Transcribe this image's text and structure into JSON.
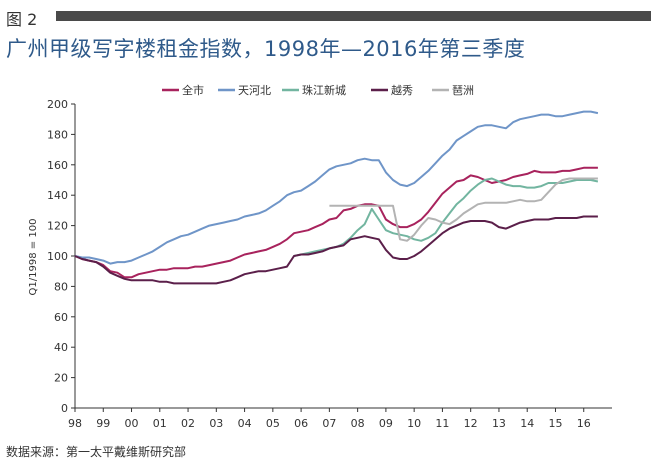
{
  "figure_label": "图 2",
  "title": "广州甲级写字楼租金指数，1998年—2016年第三季度",
  "source": "数据来源：第一太平戴维斯研究部",
  "colors": {
    "title": "#2f5a8a",
    "bar": "#4a4a4a"
  },
  "chart_data": {
    "type": "line",
    "ylabel": "Q1/1998 = 100",
    "xlabel": "",
    "ylim": [
      0,
      200
    ],
    "yticks": [
      0,
      20,
      40,
      60,
      80,
      100,
      120,
      140,
      160,
      180,
      200
    ],
    "xticks": [
      "98",
      "99",
      "00",
      "01",
      "02",
      "03",
      "04",
      "05",
      "06",
      "07",
      "08",
      "09",
      "10",
      "11",
      "12",
      "13",
      "14",
      "15",
      "16"
    ],
    "x_quarters": [
      "1998Q1",
      "1998Q2",
      "1998Q3",
      "1998Q4",
      "1999Q1",
      "1999Q2",
      "1999Q3",
      "1999Q4",
      "2000Q1",
      "2000Q2",
      "2000Q3",
      "2000Q4",
      "2001Q1",
      "2001Q2",
      "2001Q3",
      "2001Q4",
      "2002Q1",
      "2002Q2",
      "2002Q3",
      "2002Q4",
      "2003Q1",
      "2003Q2",
      "2003Q3",
      "2003Q4",
      "2004Q1",
      "2004Q2",
      "2004Q3",
      "2004Q4",
      "2005Q1",
      "2005Q2",
      "2005Q3",
      "2005Q4",
      "2006Q1",
      "2006Q2",
      "2006Q3",
      "2006Q4",
      "2007Q1",
      "2007Q2",
      "2007Q3",
      "2007Q4",
      "2008Q1",
      "2008Q2",
      "2008Q3",
      "2008Q4",
      "2009Q1",
      "2009Q2",
      "2009Q3",
      "2009Q4",
      "2010Q1",
      "2010Q2",
      "2010Q3",
      "2010Q4",
      "2011Q1",
      "2011Q2",
      "2011Q3",
      "2011Q4",
      "2012Q1",
      "2012Q2",
      "2012Q3",
      "2012Q4",
      "2013Q1",
      "2013Q2",
      "2013Q3",
      "2013Q4",
      "2014Q1",
      "2014Q2",
      "2014Q3",
      "2014Q4",
      "2015Q1",
      "2015Q2",
      "2015Q3",
      "2015Q4",
      "2016Q1",
      "2016Q2",
      "2016Q3"
    ],
    "grid": false,
    "legend_position": "top",
    "series": [
      {
        "name": "全市",
        "color": "#a8235d",
        "values": [
          100,
          98,
          97,
          96,
          94,
          90,
          89,
          86,
          86,
          88,
          89,
          90,
          91,
          91,
          92,
          92,
          92,
          93,
          93,
          94,
          95,
          96,
          97,
          99,
          101,
          102,
          103,
          104,
          106,
          108,
          111,
          115,
          116,
          117,
          119,
          121,
          124,
          125,
          130,
          131,
          133,
          134,
          134,
          133,
          124,
          121,
          119,
          119,
          121,
          124,
          129,
          135,
          141,
          145,
          149,
          150,
          153,
          152,
          150,
          148,
          149,
          150,
          152,
          153,
          154,
          156,
          155,
          155,
          155,
          156,
          156,
          157,
          158,
          158,
          158
        ]
      },
      {
        "name": "天河北",
        "color": "#6f95c8",
        "values": [
          100,
          99,
          99,
          98,
          97,
          95,
          96,
          96,
          97,
          99,
          101,
          103,
          106,
          109,
          111,
          113,
          114,
          116,
          118,
          120,
          121,
          122,
          123,
          124,
          126,
          127,
          128,
          130,
          133,
          136,
          140,
          142,
          143,
          146,
          149,
          153,
          157,
          159,
          160,
          161,
          163,
          164,
          163,
          163,
          155,
          150,
          147,
          146,
          148,
          152,
          156,
          161,
          166,
          170,
          176,
          179,
          182,
          185,
          186,
          186,
          185,
          184,
          188,
          190,
          191,
          192,
          193,
          193,
          192,
          192,
          193,
          194,
          195,
          195,
          194
        ]
      },
      {
        "name": "珠江新城",
        "color": "#72b5a0",
        "values": [
          null,
          null,
          null,
          null,
          null,
          null,
          null,
          null,
          null,
          null,
          null,
          null,
          null,
          null,
          null,
          null,
          null,
          null,
          null,
          null,
          null,
          null,
          null,
          null,
          null,
          null,
          null,
          null,
          null,
          null,
          null,
          100,
          101,
          102,
          103,
          104,
          105,
          106,
          108,
          112,
          117,
          121,
          131,
          124,
          117,
          115,
          114,
          113,
          111,
          110,
          112,
          115,
          122,
          128,
          134,
          138,
          143,
          147,
          150,
          151,
          149,
          147,
          146,
          146,
          145,
          145,
          146,
          148,
          148,
          148,
          149,
          150,
          150,
          150,
          149
        ]
      },
      {
        "name": "越秀",
        "color": "#5b1f4a",
        "values": [
          100,
          98,
          97,
          96,
          93,
          89,
          87,
          85,
          84,
          84,
          84,
          84,
          83,
          83,
          82,
          82,
          82,
          82,
          82,
          82,
          82,
          83,
          84,
          86,
          88,
          89,
          90,
          90,
          91,
          92,
          93,
          100,
          101,
          101,
          102,
          103,
          105,
          106,
          107,
          111,
          112,
          113,
          112,
          111,
          104,
          99,
          98,
          98,
          100,
          103,
          107,
          111,
          115,
          118,
          120,
          122,
          123,
          123,
          123,
          122,
          119,
          118,
          120,
          122,
          123,
          124,
          124,
          124,
          125,
          125,
          125,
          125,
          126,
          126,
          126
        ]
      },
      {
        "name": "琶洲",
        "color": "#b3b3b3",
        "values": [
          null,
          null,
          null,
          null,
          null,
          null,
          null,
          null,
          null,
          null,
          null,
          null,
          null,
          null,
          null,
          null,
          null,
          null,
          null,
          null,
          null,
          null,
          null,
          null,
          null,
          null,
          null,
          null,
          null,
          null,
          null,
          null,
          null,
          null,
          null,
          null,
          133,
          133,
          133,
          133,
          133,
          133,
          133,
          133,
          133,
          133,
          111,
          110,
          114,
          120,
          125,
          124,
          122,
          121,
          124,
          128,
          131,
          134,
          135,
          135,
          135,
          135,
          136,
          137,
          136,
          136,
          137,
          142,
          147,
          150,
          151,
          151,
          151,
          151,
          151
        ]
      }
    ]
  }
}
